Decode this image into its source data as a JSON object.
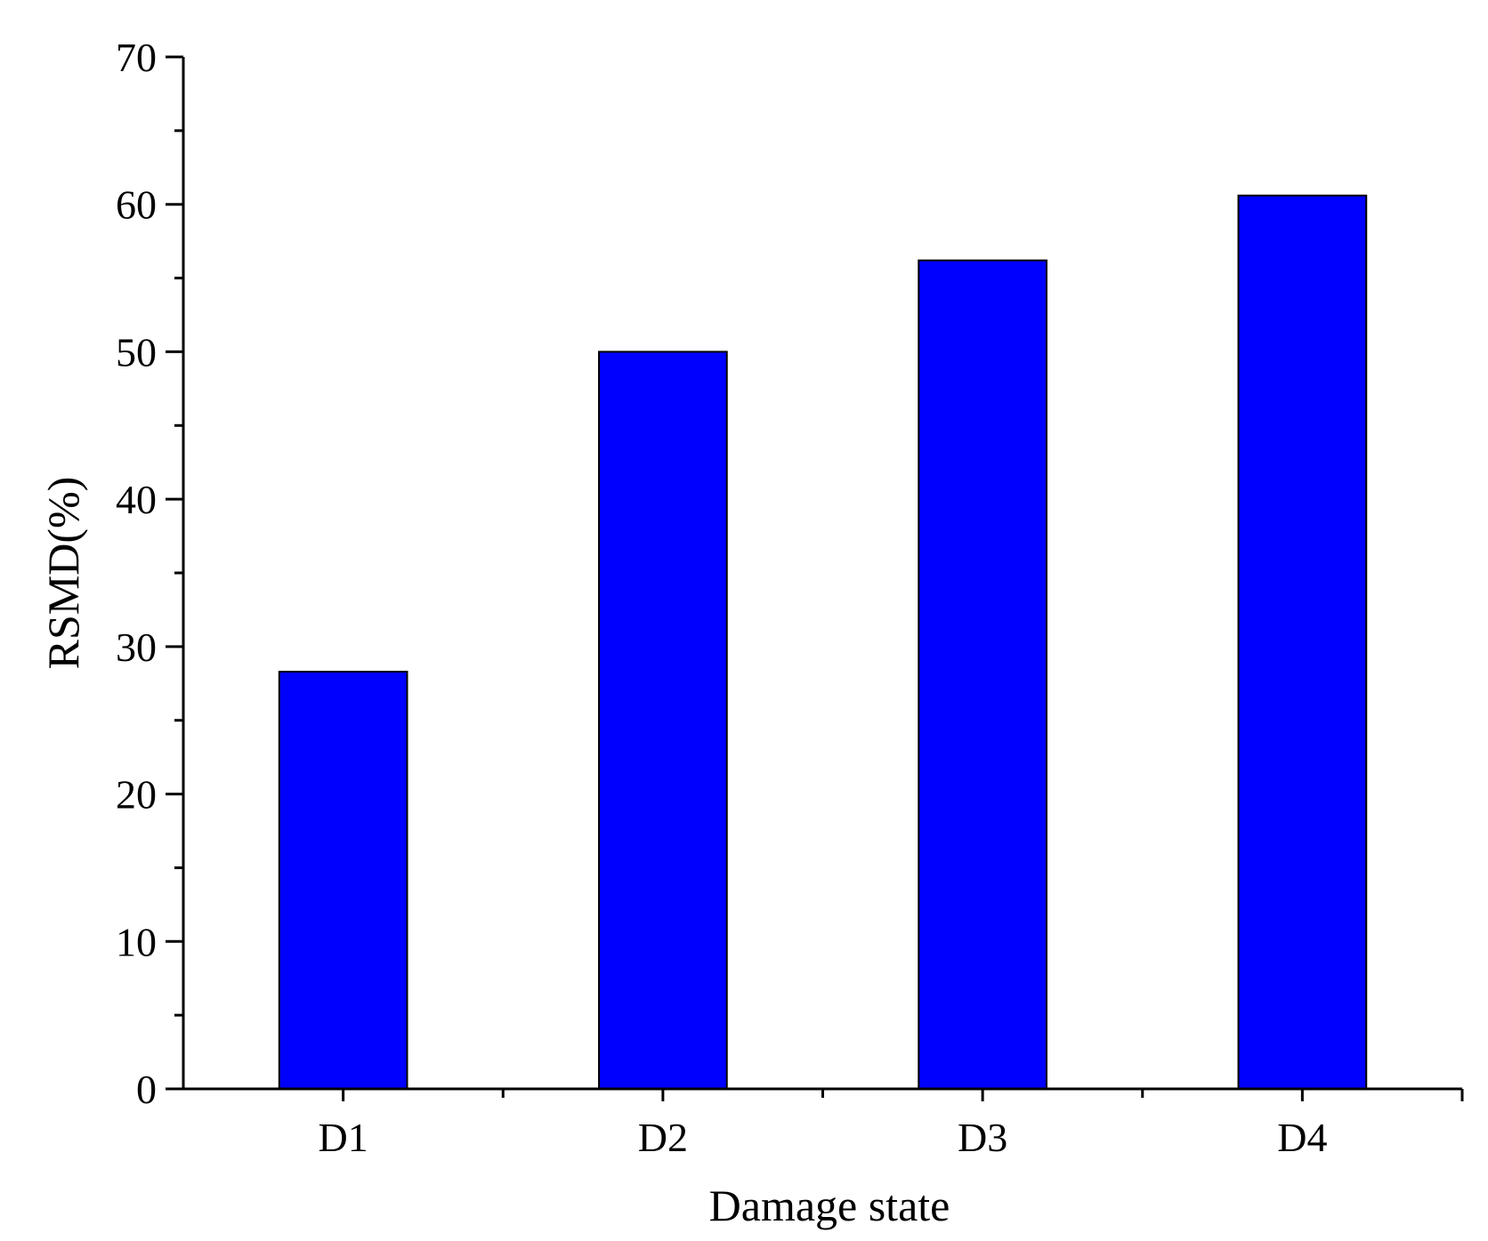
{
  "chart_data": {
    "type": "bar",
    "categories": [
      "D1",
      "D2",
      "D3",
      "D4"
    ],
    "values": [
      28.3,
      50.0,
      56.2,
      60.6
    ],
    "title": "",
    "xlabel": "Damage state",
    "ylabel": "RSMD(%)",
    "ylim": [
      0,
      70
    ],
    "yticks": [
      0,
      10,
      20,
      30,
      40,
      50,
      60,
      70
    ],
    "grid": false,
    "legend": "none",
    "bar_color": "#0000ff"
  }
}
